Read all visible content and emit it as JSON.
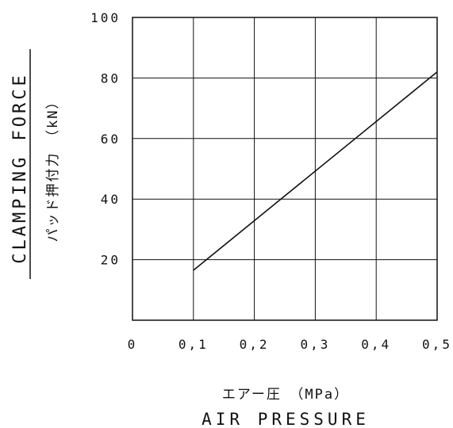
{
  "chart_data": {
    "type": "line",
    "x": [
      0.1,
      0.5
    ],
    "series": [
      {
        "values": [
          16.5,
          82
        ]
      }
    ],
    "xlim": [
      0,
      0.5
    ],
    "ylim": [
      0,
      100
    ],
    "x_ticks": [
      "0",
      "0,1",
      "0,2",
      "0,3",
      "0,4",
      "0,5"
    ],
    "y_ticks": [
      "20",
      "40",
      "60",
      "80",
      "100"
    ],
    "xlabel_jp": "エアー圧　（MPa）",
    "xlabel": "AIR PRESSURE",
    "ylabel": "CLAMPING FORCE",
    "ylabel_jp": "パッド押付力　（kN）",
    "grid": true
  }
}
